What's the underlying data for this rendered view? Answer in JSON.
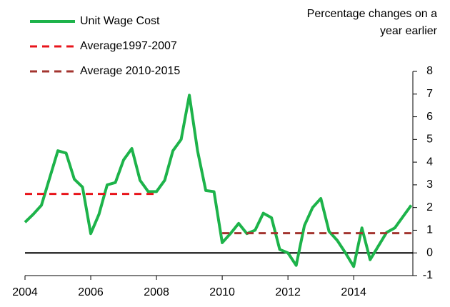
{
  "chart_data": {
    "type": "line",
    "annotation": [
      "Percentage changes on a",
      "year earlier"
    ],
    "x": [
      2004,
      2004.25,
      2004.5,
      2004.75,
      2005,
      2005.25,
      2005.5,
      2005.75,
      2006,
      2006.25,
      2006.5,
      2006.75,
      2007,
      2007.25,
      2007.5,
      2007.75,
      2008,
      2008.25,
      2008.5,
      2008.75,
      2009,
      2009.25,
      2009.5,
      2009.75,
      2010,
      2010.25,
      2010.5,
      2010.75,
      2011,
      2011.25,
      2011.5,
      2011.75,
      2012,
      2012.25,
      2012.5,
      2012.75,
      2013,
      2013.25,
      2013.5,
      2013.75,
      2014,
      2014.25,
      2014.5,
      2014.75,
      2015,
      2015.25,
      2015.5,
      2015.75
    ],
    "series": [
      {
        "name": "Unit Wage Cost",
        "color": "#1db34a",
        "dash": "none",
        "width": 4,
        "values": [
          1.35,
          1.7,
          2.1,
          3.3,
          4.5,
          4.4,
          3.25,
          2.9,
          0.85,
          1.7,
          3.0,
          3.1,
          4.1,
          4.6,
          3.2,
          2.7,
          2.7,
          3.2,
          4.5,
          5.0,
          6.95,
          4.5,
          2.75,
          2.7,
          0.45,
          0.85,
          1.3,
          0.85,
          1.0,
          1.75,
          1.55,
          0.15,
          0.0,
          -0.55,
          1.2,
          2.0,
          2.4,
          0.95,
          0.55,
          0.0,
          -0.6,
          1.1,
          -0.3,
          0.3,
          0.9,
          1.1,
          1.6,
          2.1
        ]
      },
      {
        "name": "Average1997-2007",
        "color": "#e8141b",
        "dash": "10 7",
        "width": 3,
        "x": [
          2004,
          2008
        ],
        "values": [
          2.6,
          2.6
        ]
      },
      {
        "name": "Average 2010-2015",
        "color": "#a3342f",
        "dash": "10 7",
        "width": 3,
        "x": [
          2010,
          2015.8
        ],
        "values": [
          0.87,
          0.87
        ]
      }
    ],
    "xlim": [
      2004,
      2015.8
    ],
    "xticks": [
      2004,
      2006,
      2008,
      2010,
      2012,
      2014
    ],
    "ylim": [
      -1,
      8
    ],
    "yticks": [
      -1,
      0,
      1,
      2,
      3,
      4,
      5,
      6,
      7,
      8
    ]
  }
}
